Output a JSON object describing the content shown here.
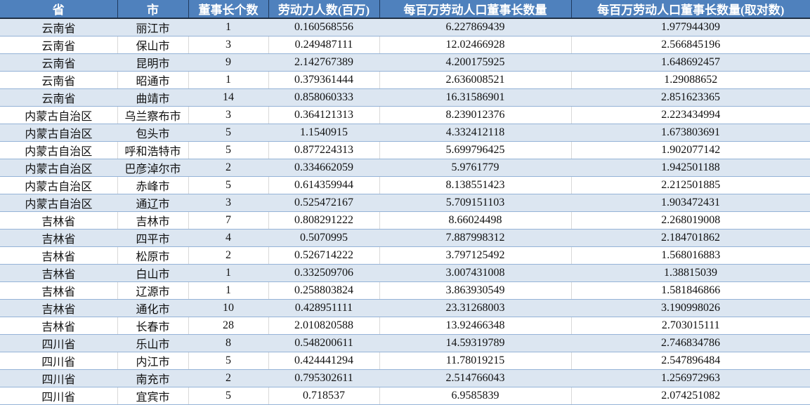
{
  "table": {
    "headers": [
      "省",
      "市",
      "董事长个数",
      "劳动力人数(百万)",
      "每百万劳动人口董事长数量",
      "每百万劳动人口董事长数量(取对数)"
    ],
    "rows": [
      [
        "云南省",
        "丽江市",
        "1",
        "0.160568556",
        "6.227869439",
        "1.977944309"
      ],
      [
        "云南省",
        "保山市",
        "3",
        "0.249487111",
        "12.02466928",
        "2.566845196"
      ],
      [
        "云南省",
        "昆明市",
        "9",
        "2.142767389",
        "4.200175925",
        "1.648692457"
      ],
      [
        "云南省",
        "昭通市",
        "1",
        "0.379361444",
        "2.636008521",
        "1.29088652"
      ],
      [
        "云南省",
        "曲靖市",
        "14",
        "0.858060333",
        "16.31586901",
        "2.851623365"
      ],
      [
        "内蒙古自治区",
        "乌兰察布市",
        "3",
        "0.364121313",
        "8.239012376",
        "2.223434994"
      ],
      [
        "内蒙古自治区",
        "包头市",
        "5",
        "1.1540915",
        "4.332412118",
        "1.673803691"
      ],
      [
        "内蒙古自治区",
        "呼和浩特市",
        "5",
        "0.877224313",
        "5.699796425",
        "1.902077142"
      ],
      [
        "内蒙古自治区",
        "巴彦淖尔市",
        "2",
        "0.334662059",
        "5.9761779",
        "1.942501188"
      ],
      [
        "内蒙古自治区",
        "赤峰市",
        "5",
        "0.614359944",
        "8.138551423",
        "2.212501885"
      ],
      [
        "内蒙古自治区",
        "通辽市",
        "3",
        "0.525472167",
        "5.709151103",
        "1.903472431"
      ],
      [
        "吉林省",
        "吉林市",
        "7",
        "0.808291222",
        "8.66024498",
        "2.268019008"
      ],
      [
        "吉林省",
        "四平市",
        "4",
        "0.5070995",
        "7.887998312",
        "2.184701862"
      ],
      [
        "吉林省",
        "松原市",
        "2",
        "0.526714222",
        "3.797125492",
        "1.568016883"
      ],
      [
        "吉林省",
        "白山市",
        "1",
        "0.332509706",
        "3.007431008",
        "1.38815039"
      ],
      [
        "吉林省",
        "辽源市",
        "1",
        "0.258803824",
        "3.863930549",
        "1.581846866"
      ],
      [
        "吉林省",
        "通化市",
        "10",
        "0.428951111",
        "23.31268003",
        "3.190998026"
      ],
      [
        "吉林省",
        "长春市",
        "28",
        "2.010820588",
        "13.92466348",
        "2.703015111"
      ],
      [
        "四川省",
        "乐山市",
        "8",
        "0.548200611",
        "14.59319789",
        "2.746834786"
      ],
      [
        "四川省",
        "内江市",
        "5",
        "0.424441294",
        "11.78019215",
        "2.547896484"
      ],
      [
        "四川省",
        "南充市",
        "2",
        "0.795302611",
        "2.514766043",
        "1.256972963"
      ],
      [
        "四川省",
        "宜宾市",
        "5",
        "0.718537",
        "6.9585839",
        "2.074251082"
      ]
    ]
  },
  "colors": {
    "header_bg": "#4f81bd",
    "stripe": "#dce6f1",
    "row_border": "#95b3d7"
  }
}
